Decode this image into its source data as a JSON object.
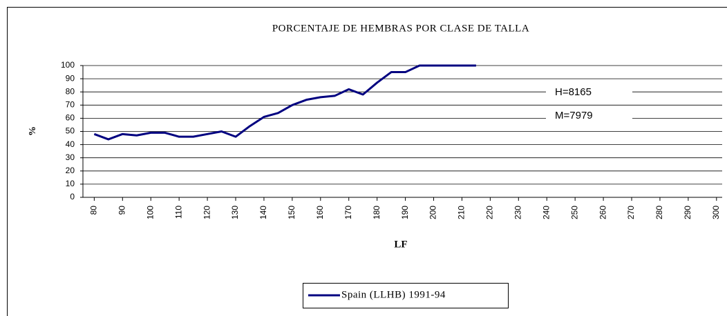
{
  "chart_data": {
    "type": "line",
    "title": "PORCENTAJE DE HEMBRAS POR CLASE DE TALLA",
    "x_label": "LF",
    "y_label": "%",
    "annotations": [
      "H=8165",
      "M=7979"
    ],
    "x": [
      80,
      85,
      90,
      95,
      100,
      105,
      110,
      115,
      120,
      125,
      130,
      135,
      140,
      145,
      150,
      155,
      160,
      165,
      170,
      175,
      180,
      185,
      190,
      195,
      200,
      205,
      210,
      215
    ],
    "series": [
      {
        "name": "Spain (LLHB) 1991-94",
        "color": "#000080",
        "values": [
          48,
          44,
          48,
          47,
          49,
          49,
          46,
          46,
          48,
          50,
          46,
          54,
          61,
          64,
          70,
          74,
          76,
          77,
          82,
          78,
          87,
          95,
          95,
          100,
          100,
          100,
          100,
          100
        ]
      }
    ],
    "xlim": [
      76,
      302
    ],
    "xticks": [
      80,
      90,
      100,
      110,
      120,
      130,
      140,
      150,
      160,
      170,
      180,
      190,
      200,
      210,
      220,
      230,
      240,
      250,
      260,
      270,
      280,
      290,
      300
    ],
    "ylim": [
      0,
      100
    ],
    "yticks": [
      0,
      10,
      20,
      30,
      40,
      50,
      60,
      70,
      80,
      90,
      100
    ],
    "grid": true,
    "legend": "bottom"
  }
}
